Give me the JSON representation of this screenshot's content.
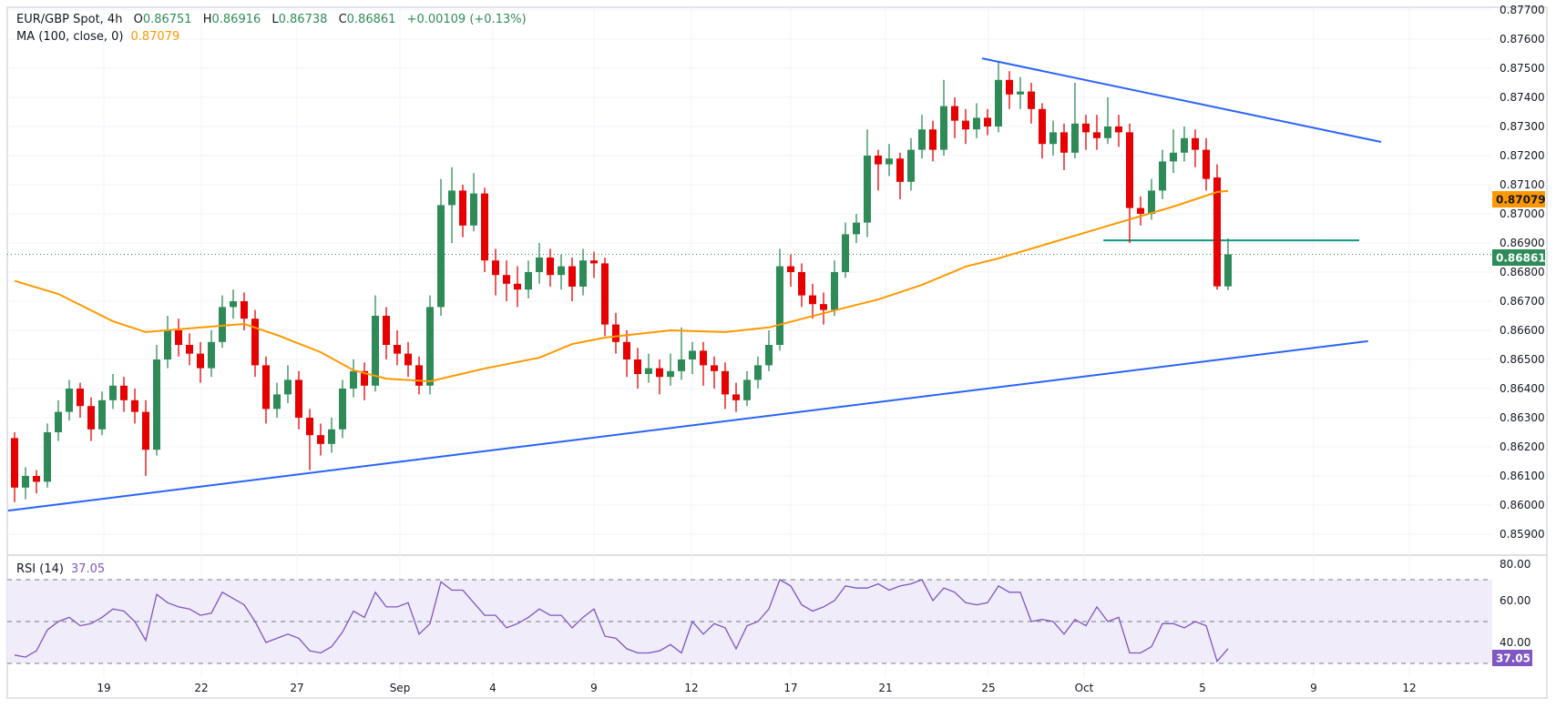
{
  "legend": {
    "symbol": "EUR/GBP Spot, 4h",
    "open_label": "O",
    "open": "0.86751",
    "high_label": "H",
    "high": "0.86916",
    "low_label": "L",
    "low": "0.86738",
    "close_label": "C",
    "close": "0.86861",
    "change": "+0.00109 (+0.13%)",
    "ma_label": "MA (100, close, 0)",
    "ma_value": "0.87079",
    "rsi_label": "RSI (14)",
    "rsi_value": "37.05"
  },
  "colors": {
    "up": "#2e8b57",
    "down": "#e60000",
    "ma": "#ff9800",
    "trendline": "#2962ff",
    "support_line": "#089981",
    "rsi": "#7e57c2",
    "rsi_band": "#f0ecf9",
    "grid": "#f0f3fa",
    "border": "#e0e3eb"
  },
  "chart_data": {
    "type": "candlestick",
    "symbol": "EUR/GBP Spot",
    "interval": "4h",
    "price_axis": {
      "range": [
        0.8587,
        0.8772
      ],
      "ticks": [
        "0.87700",
        "0.87600",
        "0.87500",
        "0.87400",
        "0.87300",
        "0.87200",
        "0.87100",
        "0.87000",
        "0.86900",
        "0.86800",
        "0.86700",
        "0.86600",
        "0.86500",
        "0.86400",
        "0.86300",
        "0.86200",
        "0.86100",
        "0.86000",
        "0.85900"
      ],
      "last_price": "0.86861",
      "ma_last": "0.87079"
    },
    "x_axis": {
      "ticks": [
        "19",
        "22",
        "27",
        "Sep",
        "4",
        "9",
        "12",
        "17",
        "21",
        "25",
        "Oct",
        "5",
        "9",
        "12"
      ]
    },
    "grid": true,
    "candles_ohlc": [
      [
        0.8623,
        0.8625,
        0.8601,
        0.8606
      ],
      [
        0.8606,
        0.8613,
        0.8602,
        0.861
      ],
      [
        0.861,
        0.8612,
        0.8604,
        0.8608
      ],
      [
        0.8608,
        0.8628,
        0.8606,
        0.8625
      ],
      [
        0.8625,
        0.8636,
        0.8622,
        0.8632
      ],
      [
        0.8632,
        0.8643,
        0.8629,
        0.864
      ],
      [
        0.864,
        0.8642,
        0.863,
        0.8634
      ],
      [
        0.8634,
        0.8637,
        0.8622,
        0.8626
      ],
      [
        0.8626,
        0.8639,
        0.8624,
        0.8636
      ],
      [
        0.8636,
        0.8645,
        0.8633,
        0.8641
      ],
      [
        0.8641,
        0.8644,
        0.8632,
        0.8636
      ],
      [
        0.8636,
        0.864,
        0.8628,
        0.8632
      ],
      [
        0.8632,
        0.8636,
        0.861,
        0.8619
      ],
      [
        0.8619,
        0.8655,
        0.8617,
        0.865
      ],
      [
        0.865,
        0.8665,
        0.8647,
        0.866
      ],
      [
        0.866,
        0.8664,
        0.8651,
        0.8655
      ],
      [
        0.8655,
        0.8659,
        0.8648,
        0.8652
      ],
      [
        0.8652,
        0.8656,
        0.8642,
        0.8647
      ],
      [
        0.8647,
        0.866,
        0.8644,
        0.8656
      ],
      [
        0.8656,
        0.8672,
        0.8654,
        0.8668
      ],
      [
        0.8668,
        0.8674,
        0.8664,
        0.867
      ],
      [
        0.867,
        0.8673,
        0.866,
        0.8664
      ],
      [
        0.8664,
        0.8667,
        0.8644,
        0.8648
      ],
      [
        0.8648,
        0.8651,
        0.8628,
        0.8633
      ],
      [
        0.8633,
        0.8642,
        0.863,
        0.8638
      ],
      [
        0.8638,
        0.8648,
        0.8635,
        0.8643
      ],
      [
        0.8643,
        0.8646,
        0.8626,
        0.863
      ],
      [
        0.863,
        0.8633,
        0.8612,
        0.8624
      ],
      [
        0.8624,
        0.8628,
        0.8617,
        0.8621
      ],
      [
        0.8621,
        0.863,
        0.8618,
        0.8626
      ],
      [
        0.8626,
        0.8643,
        0.8623,
        0.864
      ],
      [
        0.864,
        0.865,
        0.8637,
        0.8646
      ],
      [
        0.8646,
        0.8649,
        0.8636,
        0.8641
      ],
      [
        0.8641,
        0.8672,
        0.8639,
        0.8665
      ],
      [
        0.8665,
        0.8668,
        0.865,
        0.8655
      ],
      [
        0.8655,
        0.866,
        0.8648,
        0.8652
      ],
      [
        0.8652,
        0.8656,
        0.8644,
        0.8648
      ],
      [
        0.8648,
        0.8651,
        0.8638,
        0.8641
      ],
      [
        0.8641,
        0.8672,
        0.8638,
        0.8668
      ],
      [
        0.8668,
        0.8712,
        0.8665,
        0.8703
      ],
      [
        0.8703,
        0.8716,
        0.869,
        0.8708
      ],
      [
        0.8708,
        0.871,
        0.8692,
        0.8696
      ],
      [
        0.8696,
        0.8714,
        0.8694,
        0.8707
      ],
      [
        0.8707,
        0.8709,
        0.868,
        0.8684
      ],
      [
        0.8684,
        0.8688,
        0.8672,
        0.8679
      ],
      [
        0.8679,
        0.8684,
        0.867,
        0.8676
      ],
      [
        0.8676,
        0.8682,
        0.8668,
        0.8674
      ],
      [
        0.8674,
        0.8684,
        0.8671,
        0.868
      ],
      [
        0.868,
        0.869,
        0.8676,
        0.8685
      ],
      [
        0.8685,
        0.8688,
        0.8675,
        0.8679
      ],
      [
        0.8679,
        0.8686,
        0.8674,
        0.8682
      ],
      [
        0.8682,
        0.8685,
        0.867,
        0.8675
      ],
      [
        0.8675,
        0.8688,
        0.8672,
        0.8684
      ],
      [
        0.8684,
        0.8687,
        0.8678,
        0.8683
      ],
      [
        0.8683,
        0.8685,
        0.8658,
        0.8662
      ],
      [
        0.8662,
        0.8666,
        0.8652,
        0.8656
      ],
      [
        0.8656,
        0.866,
        0.8644,
        0.865
      ],
      [
        0.865,
        0.8654,
        0.864,
        0.8645
      ],
      [
        0.8645,
        0.8652,
        0.8642,
        0.8647
      ],
      [
        0.8647,
        0.865,
        0.8638,
        0.8644
      ],
      [
        0.8644,
        0.8652,
        0.8641,
        0.8646
      ],
      [
        0.8646,
        0.8661,
        0.8643,
        0.865
      ],
      [
        0.865,
        0.8656,
        0.8645,
        0.8653
      ],
      [
        0.8653,
        0.8656,
        0.8641,
        0.8648
      ],
      [
        0.8648,
        0.8651,
        0.864,
        0.8646
      ],
      [
        0.8646,
        0.8649,
        0.8633,
        0.8638
      ],
      [
        0.8638,
        0.8642,
        0.8632,
        0.8636
      ],
      [
        0.8636,
        0.8646,
        0.8634,
        0.8643
      ],
      [
        0.8643,
        0.8651,
        0.864,
        0.8648
      ],
      [
        0.8648,
        0.866,
        0.8646,
        0.8655
      ],
      [
        0.8655,
        0.8688,
        0.8653,
        0.8682
      ],
      [
        0.8682,
        0.8686,
        0.8675,
        0.868
      ],
      [
        0.868,
        0.8683,
        0.8668,
        0.8672
      ],
      [
        0.8672,
        0.8676,
        0.8664,
        0.8669
      ],
      [
        0.8669,
        0.8673,
        0.8662,
        0.8667
      ],
      [
        0.8667,
        0.8684,
        0.8665,
        0.868
      ],
      [
        0.868,
        0.8697,
        0.8678,
        0.8693
      ],
      [
        0.8693,
        0.87,
        0.869,
        0.8697
      ],
      [
        0.8697,
        0.8729,
        0.8692,
        0.872
      ],
      [
        0.872,
        0.8722,
        0.8708,
        0.8717
      ],
      [
        0.8717,
        0.8724,
        0.8713,
        0.8719
      ],
      [
        0.8719,
        0.8721,
        0.8705,
        0.8711
      ],
      [
        0.8711,
        0.8726,
        0.8708,
        0.8722
      ],
      [
        0.8722,
        0.8734,
        0.8719,
        0.8729
      ],
      [
        0.8729,
        0.8732,
        0.8718,
        0.8722
      ],
      [
        0.8722,
        0.8746,
        0.872,
        0.8737
      ],
      [
        0.8737,
        0.874,
        0.8726,
        0.8732
      ],
      [
        0.8732,
        0.8736,
        0.8724,
        0.8729
      ],
      [
        0.8729,
        0.8738,
        0.8726,
        0.8733
      ],
      [
        0.8733,
        0.8736,
        0.8727,
        0.873
      ],
      [
        0.873,
        0.8752,
        0.8728,
        0.8746
      ],
      [
        0.8746,
        0.8749,
        0.8736,
        0.8741
      ],
      [
        0.8741,
        0.8747,
        0.8736,
        0.8742
      ],
      [
        0.8742,
        0.8745,
        0.8731,
        0.8736
      ],
      [
        0.8736,
        0.8738,
        0.8719,
        0.8724
      ],
      [
        0.8724,
        0.8732,
        0.872,
        0.8728
      ],
      [
        0.8728,
        0.8731,
        0.8715,
        0.8721
      ],
      [
        0.8721,
        0.8745,
        0.8719,
        0.8731
      ],
      [
        0.8731,
        0.8734,
        0.8722,
        0.8728
      ],
      [
        0.8728,
        0.8734,
        0.8722,
        0.8726
      ],
      [
        0.8726,
        0.874,
        0.8724,
        0.873
      ],
      [
        0.873,
        0.8734,
        0.8723,
        0.8728
      ],
      [
        0.8728,
        0.8731,
        0.869,
        0.8702
      ],
      [
        0.8702,
        0.8706,
        0.8696,
        0.87
      ],
      [
        0.87,
        0.8712,
        0.8698,
        0.8708
      ],
      [
        0.8708,
        0.8722,
        0.8705,
        0.8718
      ],
      [
        0.8718,
        0.8729,
        0.8714,
        0.8721
      ],
      [
        0.8721,
        0.873,
        0.8718,
        0.8726
      ],
      [
        0.8726,
        0.8729,
        0.8716,
        0.8722
      ],
      [
        0.8722,
        0.8726,
        0.8708,
        0.8712
      ],
      [
        0.87125,
        0.8717,
        0.8674,
        0.86751
      ],
      [
        0.86751,
        0.86916,
        0.86738,
        0.86861
      ]
    ],
    "moving_average": {
      "name": "MA (100, close, 0)",
      "points_bar_value": [
        [
          0,
          0.8677
        ],
        [
          4,
          0.86725
        ],
        [
          9,
          0.86631
        ],
        [
          12,
          0.86594
        ],
        [
          19,
          0.86616
        ],
        [
          21,
          0.86622
        ],
        [
          24,
          0.86584
        ],
        [
          28,
          0.86525
        ],
        [
          31,
          0.86463
        ],
        [
          34,
          0.86434
        ],
        [
          38,
          0.86425
        ],
        [
          43,
          0.86469
        ],
        [
          48,
          0.86506
        ],
        [
          51,
          0.86553
        ],
        [
          54,
          0.86575
        ],
        [
          60,
          0.866
        ],
        [
          65,
          0.86594
        ],
        [
          69,
          0.8661
        ],
        [
          76,
          0.86678
        ],
        [
          79,
          0.86706
        ],
        [
          83,
          0.86756
        ],
        [
          87,
          0.86819
        ],
        [
          90,
          0.86847
        ],
        [
          102,
          0.86981
        ],
        [
          106,
          0.87025
        ],
        [
          110,
          0.87075
        ],
        [
          111,
          0.87079
        ]
      ]
    },
    "drawings": {
      "upper_trendline": {
        "from": [
          88.5,
          0.87534
        ],
        "to": [
          125,
          0.87247
        ]
      },
      "lower_trendline": {
        "from": [
          -0.6,
          0.85981
        ],
        "to": [
          123.8,
          0.86563
        ]
      },
      "support_line": {
        "from": [
          99.6,
          0.86909
        ],
        "to": [
          123,
          0.86909
        ]
      }
    },
    "rsi": {
      "name": "RSI (14)",
      "range": [
        20,
        80
      ],
      "levels": [
        70,
        50,
        30
      ],
      "ticks": [
        "80.00",
        "60.00",
        "40.00"
      ],
      "last": "37.05",
      "values": [
        34,
        33,
        36,
        46,
        50,
        52,
        48,
        49,
        52,
        56,
        55,
        50,
        41,
        63,
        59,
        57,
        56,
        53,
        54,
        64,
        61,
        58,
        50,
        40,
        42,
        44,
        42,
        36,
        35,
        38,
        45,
        55,
        52,
        64,
        57,
        57,
        59,
        44,
        49,
        69,
        65,
        65,
        59,
        53,
        53,
        47,
        49,
        52,
        56,
        53,
        53,
        47,
        52,
        56,
        43,
        42,
        37,
        35,
        35,
        36,
        39,
        35,
        50,
        44,
        49,
        47,
        37,
        48,
        50,
        56,
        70,
        67,
        58,
        55,
        57,
        60,
        67,
        66,
        66,
        68,
        65,
        67,
        68,
        70,
        60,
        66,
        64,
        59,
        58,
        59,
        67,
        64,
        64,
        50,
        51,
        50,
        44,
        51,
        48,
        57,
        50,
        52,
        35,
        35,
        38,
        49,
        49,
        47,
        50,
        48,
        31,
        37.05
      ]
    }
  }
}
